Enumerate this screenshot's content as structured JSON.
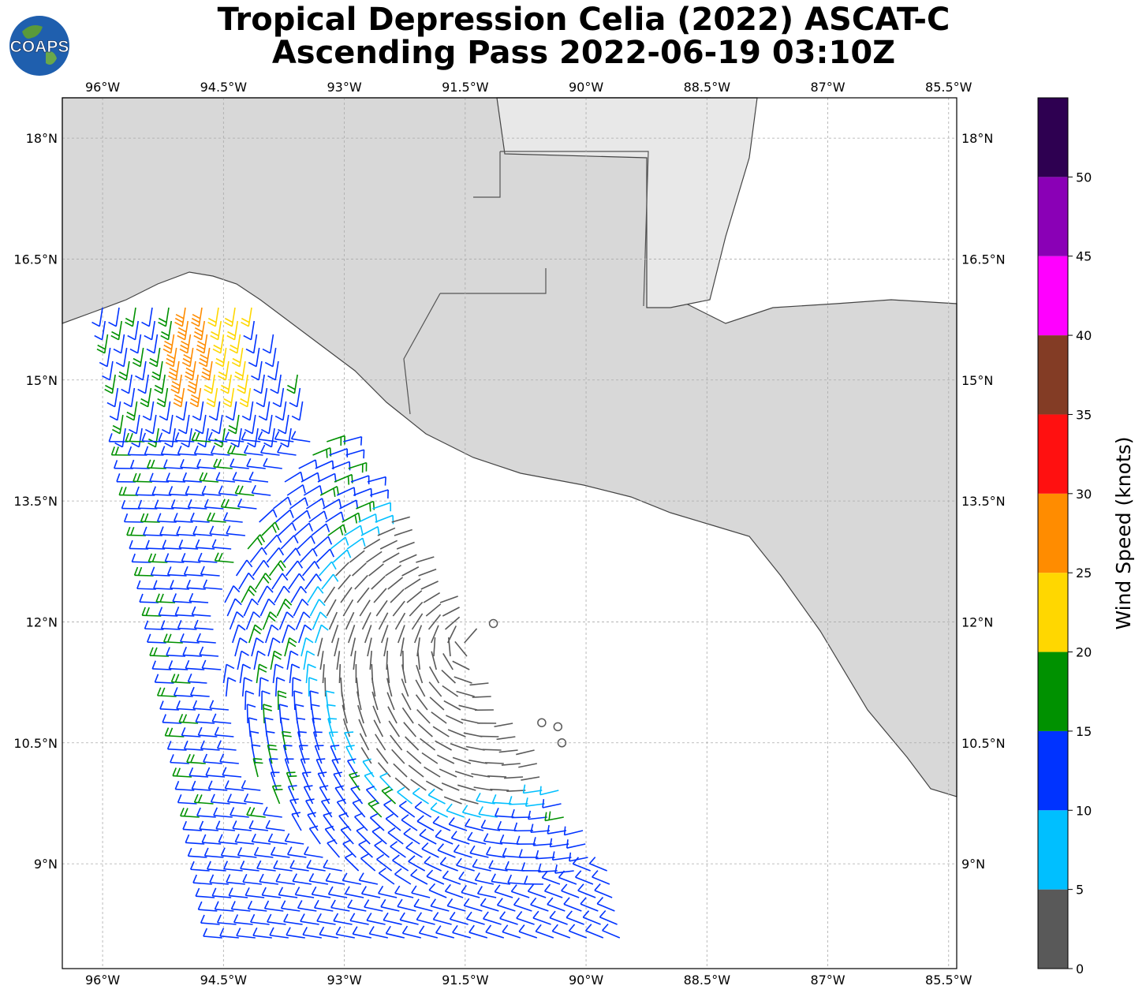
{
  "title": {
    "line1": "Tropical Depression Celia (2022) ASCAT-C",
    "line2": "Ascending Pass 2022-06-19 03:10Z"
  },
  "logo": {
    "text": "COAPS",
    "icon": "globe-icon"
  },
  "map": {
    "lon_range": [
      -96.5,
      -85.4
    ],
    "lat_range": [
      7.7,
      18.5
    ],
    "lon_ticks": [
      {
        "value": -96,
        "label": "96°W"
      },
      {
        "value": -94.5,
        "label": "94.5°W"
      },
      {
        "value": -93,
        "label": "93°W"
      },
      {
        "value": -91.5,
        "label": "91.5°W"
      },
      {
        "value": -90,
        "label": "90°W"
      },
      {
        "value": -88.5,
        "label": "88.5°W"
      },
      {
        "value": -87,
        "label": "87°W"
      },
      {
        "value": -85.5,
        "label": "85.5°W"
      }
    ],
    "lat_ticks": [
      {
        "value": 18,
        "label": "18°N"
      },
      {
        "value": 16.5,
        "label": "16.5°N"
      },
      {
        "value": 15,
        "label": "15°N"
      },
      {
        "value": 13.5,
        "label": "13.5°N"
      },
      {
        "value": 12,
        "label": "12°N"
      },
      {
        "value": 10.5,
        "label": "10.5°N"
      },
      {
        "value": 9,
        "label": "9°N"
      }
    ],
    "grid": true,
    "land_color": "#d8d8d8",
    "ocean_color": "#ffffff",
    "calm_centers": [
      [
        -91.15,
        11.98
      ],
      [
        -90.55,
        10.75
      ],
      [
        -90.35,
        10.7
      ],
      [
        -90.3,
        10.5
      ]
    ]
  },
  "colorbar": {
    "label": "Wind Speed (knots)",
    "bounds": [
      0,
      5,
      10,
      15,
      20,
      25,
      30,
      35,
      40,
      45,
      50,
      55
    ],
    "tick_labels": [
      "0",
      "5",
      "10",
      "15",
      "20",
      "25",
      "30",
      "35",
      "40",
      "45",
      "50"
    ],
    "colors": [
      "#595959",
      "#00bfff",
      "#0033ff",
      "#009100",
      "#ffd700",
      "#ff8c00",
      "#ff1010",
      "#833c25",
      "#ff00ff",
      "#8a00b6",
      "#2e0051"
    ]
  }
}
